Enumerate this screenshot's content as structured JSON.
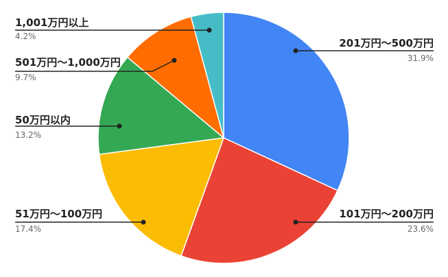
{
  "chart_data": {
    "type": "pie",
    "title": "",
    "slices": [
      {
        "label": "201万円～500万円",
        "value": 31.9,
        "display": "31.9%",
        "color": "#4285F4"
      },
      {
        "label": "101万円～200万円",
        "value": 23.6,
        "display": "23.6%",
        "color": "#EA4335"
      },
      {
        "label": "51万円～100万円",
        "value": 17.4,
        "display": "17.4%",
        "color": "#FBBC04"
      },
      {
        "label": "50万円以内",
        "value": 13.2,
        "display": "13.2%",
        "color": "#34A853"
      },
      {
        "label": "501万円～1,000万円",
        "value": 9.7,
        "display": "9.7%",
        "color": "#FF6D01"
      },
      {
        "label": "1,001万円以上",
        "value": 4.2,
        "display": "4.2%",
        "color": "#46BDC6"
      }
    ],
    "start_angle_deg": 0,
    "direction": "clockwise",
    "legend": "none"
  }
}
